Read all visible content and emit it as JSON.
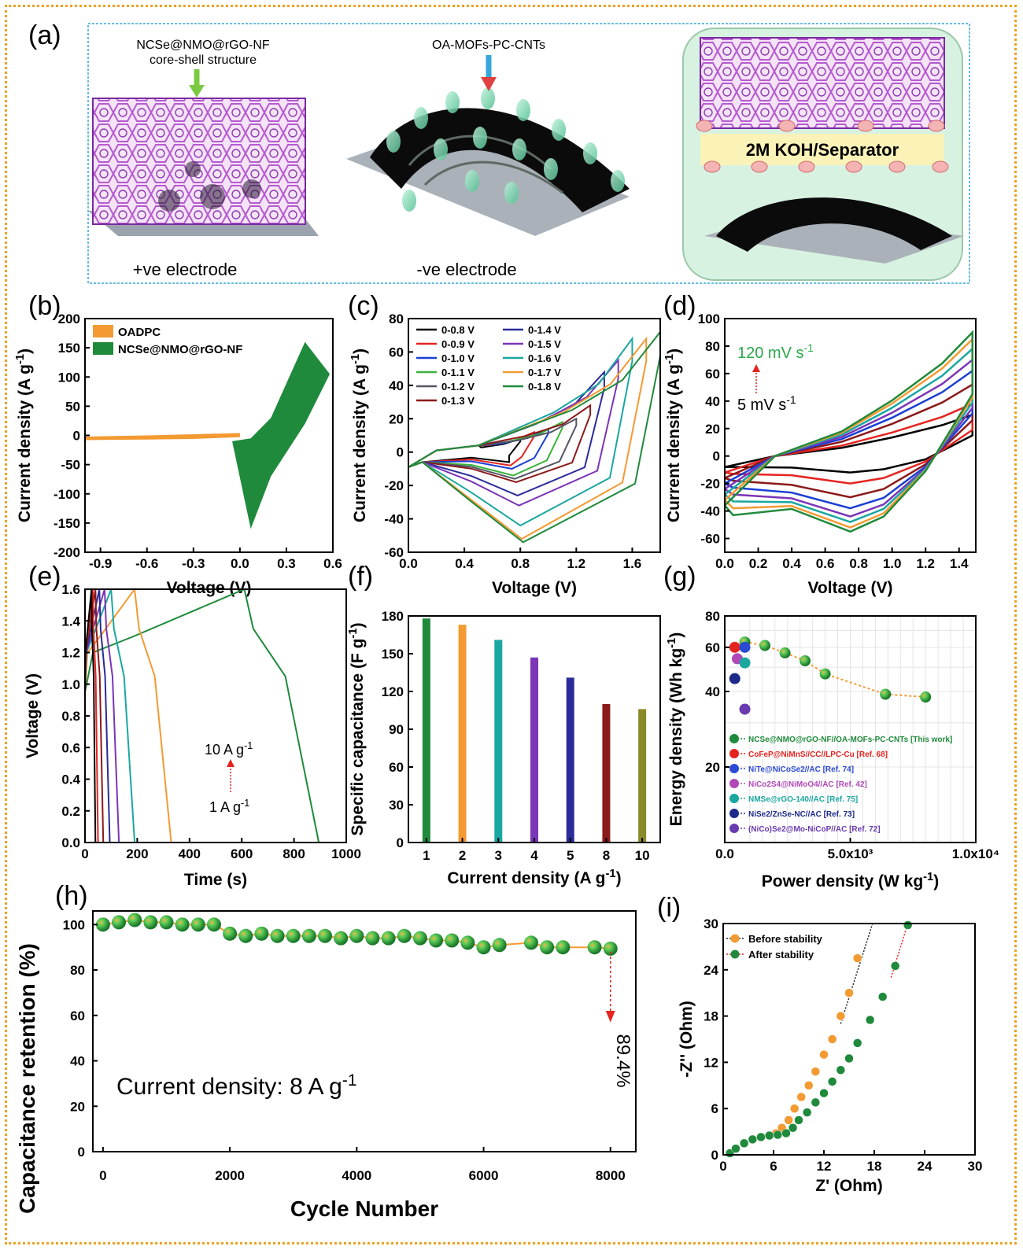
{
  "figure": {
    "panel_labels": [
      "(a)",
      "(b)",
      "(c)",
      "(d)",
      "(e)",
      "(f)",
      "(g)",
      "(h)",
      "(i)"
    ],
    "schematic": {
      "label_pos": "NCSe@NMO@rGO-NF",
      "label_pos_sub": "core-shell structure",
      "label_neg": "OA-MOFs-PC-CNTs",
      "electrolyte": "2M KOH/Separator",
      "pos_electrode": "+ve electrode",
      "neg_electrode": "-ve electrode"
    }
  },
  "chart_data": [
    {
      "panel": "b",
      "type": "line",
      "xlabel": "Voltage (V)",
      "ylabel": "Current density (A g-1)",
      "xlim": [
        -1.0,
        0.6
      ],
      "ylim": [
        -200,
        200
      ],
      "xticks": [
        "-0.9",
        "-0.6",
        "-0.3",
        "0.0",
        "0.3",
        "0.6"
      ],
      "yticks": [
        "-200",
        "-150",
        "-100",
        "-50",
        "0",
        "50",
        "100",
        "150",
        "200"
      ],
      "legend": [
        "OADPC",
        "NCSe@NMO@rGO-NF"
      ],
      "colors": [
        "#f39a32",
        "#1f8a3b"
      ],
      "series": [
        {
          "name": "OADPC",
          "x": [
            -1.0,
            -0.6,
            -0.3,
            0.0
          ],
          "y_upper": [
            -2,
            0,
            2,
            4
          ],
          "y_lower": [
            -8,
            -7,
            -6,
            -3
          ]
        },
        {
          "name": "NCSe@NMO@rGO-NF",
          "x": [
            -0.05,
            0.07,
            0.2,
            0.42,
            0.58
          ],
          "y_upper": [
            -10,
            -5,
            30,
            160,
            105
          ],
          "y_lower": [
            -10,
            -160,
            -70,
            20,
            105
          ]
        }
      ]
    },
    {
      "panel": "c",
      "type": "line",
      "xlabel": "Voltage (V)",
      "ylabel": "Current density (A g-1)",
      "xlim": [
        0.0,
        1.8
      ],
      "ylim": [
        -60,
        80
      ],
      "xticks": [
        "0.0",
        "0.4",
        "0.8",
        "1.2",
        "1.6"
      ],
      "yticks": [
        "-60",
        "-40",
        "-20",
        "0",
        "20",
        "40",
        "60",
        "80"
      ],
      "legend": [
        "0-0.8 V",
        "0-0.9 V",
        "0-1.0 V",
        "0-1.1 V",
        "0-1.2 V",
        "0-1.3 V",
        "0-1.4 V",
        "0-1.5 V",
        "0-1.6 V",
        "0-1.7 V",
        "0-1.8 V"
      ],
      "colors": [
        "#000000",
        "#e52420",
        "#1a3fd4",
        "#3ab33a",
        "#555566",
        "#8b1a1a",
        "#2b2b9a",
        "#7b35b8",
        "#1aa7a0",
        "#f39a32",
        "#1f8a3b"
      ],
      "vmax": [
        0.8,
        0.9,
        1.0,
        1.1,
        1.2,
        1.3,
        1.4,
        1.5,
        1.6,
        1.7,
        1.8
      ],
      "peak_current_top": [
        8,
        12,
        14,
        18,
        20,
        28,
        48,
        55,
        68,
        68,
        72
      ],
      "peak_current_bottom": [
        -6,
        -8,
        -10,
        -14,
        -16,
        -18,
        -26,
        -32,
        -44,
        -52,
        -54
      ]
    },
    {
      "panel": "d",
      "type": "line",
      "xlabel": "Voltage (V)",
      "ylabel": "Current density (A g-1)",
      "xlim": [
        0.0,
        1.5
      ],
      "ylim": [
        -70,
        100
      ],
      "xticks": [
        "0.0",
        "0.2",
        "0.4",
        "0.6",
        "0.8",
        "1.0",
        "1.2",
        "1.4"
      ],
      "yticks": [
        "-60",
        "-40",
        "-20",
        "0",
        "20",
        "40",
        "60",
        "80",
        "100"
      ],
      "annotations": [
        "120 mV s-1",
        "5 mV s-1"
      ],
      "colors": [
        "#000000",
        "#e52420",
        "#8b1a1a",
        "#1a3fd4",
        "#7b35b8",
        "#1aa7a0",
        "#f39a32",
        "#1f8a3b"
      ],
      "max_current": [
        30,
        38,
        52,
        62,
        70,
        78,
        85,
        90
      ],
      "min_current": [
        -12,
        -20,
        -30,
        -38,
        -44,
        -48,
        -52,
        -55
      ]
    },
    {
      "panel": "e",
      "type": "line",
      "xlabel": "Time (s)",
      "ylabel": "Voltage (V)",
      "xlim": [
        0,
        1000
      ],
      "ylim": [
        0.0,
        1.6
      ],
      "xticks": [
        "0",
        "200",
        "400",
        "600",
        "800",
        "1000"
      ],
      "yticks": [
        "0.0",
        "0.2",
        "0.4",
        "0.6",
        "0.8",
        "1.0",
        "1.2",
        "1.4",
        "1.6"
      ],
      "annotations": [
        "10 A g-1",
        "1 A g-1"
      ],
      "colors": [
        "#1f8a3b",
        "#f39a32",
        "#1aa7a0",
        "#7b35b8",
        "#2b2b9a",
        "#8b1a1a",
        "#e52420",
        "#000000"
      ],
      "charge_end": [
        610,
        190,
        100,
        75,
        55,
        40,
        30,
        25
      ],
      "discharge_end": [
        895,
        330,
        190,
        130,
        95,
        70,
        50,
        40
      ]
    },
    {
      "panel": "f",
      "type": "bar",
      "xlabel": "Current density (A g-1)",
      "ylabel": "Specific capacitance (F g-1)",
      "ylim": [
        0,
        180
      ],
      "yticks": [
        "0",
        "30",
        "60",
        "90",
        "120",
        "150",
        "180"
      ],
      "categories": [
        "1",
        "2",
        "3",
        "4",
        "5",
        "8",
        "10"
      ],
      "values": [
        178,
        173,
        161,
        147,
        131,
        110,
        106
      ],
      "colors": [
        "#1f8a3b",
        "#f39a32",
        "#1aa7a0",
        "#7b35b8",
        "#2b2b9a",
        "#8b1a1a",
        "#8a8a2a"
      ]
    },
    {
      "panel": "g",
      "type": "scatter",
      "xlabel": "Power density (W kg-1)",
      "ylabel": "Energy density (Wh kg-1)",
      "xlim": [
        0,
        10000
      ],
      "ylim_log": [
        10,
        80
      ],
      "xticks": [
        "0.0",
        "5.0x10³",
        "1.0x10⁴"
      ],
      "yticks": [
        "20",
        "40",
        "60",
        "80"
      ],
      "legend": [
        "NCSe@NMO@rGO-NF//OA-MOFs-PC-CNTs [This work]",
        "CoFeP@NiMnS//CC//LPC-Cu [Ref. 68]",
        "NiTe@NiCoSe2//AC [Ref. 74]",
        "NiCo2S4@NiMoO4//AC [Ref. 42]",
        "NMSe@rGO-140//AC [Ref. 75]",
        "NiSe2/ZnSe-NC//AC [Ref. 73]",
        "(NiCo)Se2@Mo-NiCoP//AC [Ref. 72]"
      ],
      "legend_colors": [
        "#1f8a3b",
        "#e52420",
        "#2b4bd4",
        "#b048b8",
        "#1aa7a0",
        "#1d2a8a",
        "#6a3bb0"
      ],
      "series": [
        {
          "name": "NCSe@NMO@rGO-NF//OA-MOFs-PC-CNTs [This work]",
          "x": [
            800,
            1600,
            2400,
            3200,
            4000,
            6400,
            8000
          ],
          "y": [
            63,
            61,
            57,
            53,
            47,
            39,
            38
          ]
        },
        {
          "name": "CoFeP@NiMnS//CC//LPC-Cu [Ref. 68]",
          "x": [
            400
          ],
          "y": [
            60
          ]
        },
        {
          "name": "NiTe@NiCoSe2//AC [Ref. 74]",
          "x": [
            800
          ],
          "y": [
            60
          ]
        },
        {
          "name": "NiCo2S4@NiMoO4//AC [Ref. 42]",
          "x": [
            500
          ],
          "y": [
            54
          ]
        },
        {
          "name": "NMSe@rGO-140//AC [Ref. 75]",
          "x": [
            800
          ],
          "y": [
            52
          ]
        },
        {
          "name": "NiSe2/ZnSe-NC//AC [Ref. 73]",
          "x": [
            400
          ],
          "y": [
            45
          ]
        },
        {
          "name": "(NiCo)Se2@Mo-NiCoP//AC [Ref. 72]",
          "x": [
            800
          ],
          "y": [
            34
          ]
        }
      ]
    },
    {
      "panel": "h",
      "type": "scatter",
      "xlabel": "Cycle Number",
      "ylabel": "Capacitance retention (%)",
      "xlim": [
        0,
        8000
      ],
      "ylim": [
        0,
        100
      ],
      "xticks": [
        "0",
        "2000",
        "4000",
        "6000",
        "8000"
      ],
      "yticks": [
        "0",
        "20",
        "40",
        "60",
        "80",
        "100"
      ],
      "annotations": [
        "Current density: 8 A g-1",
        "89.4%"
      ],
      "x": [
        0,
        250,
        500,
        750,
        1000,
        1250,
        1500,
        1750,
        2000,
        2250,
        2500,
        2750,
        3000,
        3250,
        3500,
        3750,
        4000,
        4250,
        4500,
        4750,
        5000,
        5250,
        5500,
        5750,
        6000,
        6250,
        6750,
        7000,
        7250,
        7750,
        8000
      ],
      "y": [
        100,
        101,
        102,
        101,
        101,
        100,
        100,
        100,
        96,
        95,
        96,
        95,
        95,
        95,
        95,
        94,
        95,
        94,
        94,
        95,
        94,
        93,
        93,
        92,
        90,
        91,
        92,
        90,
        90,
        90,
        89.4
      ]
    },
    {
      "panel": "i",
      "type": "scatter",
      "xlabel": "Z' (Ohm)",
      "ylabel": "-Z'' (Ohm)",
      "xlim": [
        0,
        30
      ],
      "ylim": [
        0,
        30
      ],
      "xticks": [
        "0",
        "6",
        "12",
        "18",
        "24",
        "30"
      ],
      "yticks": [
        "0",
        "6",
        "12",
        "18",
        "24",
        "30"
      ],
      "legend": [
        "Before stability",
        "After stability"
      ],
      "colors": [
        "#f39a32",
        "#1f8a3b"
      ],
      "series": [
        {
          "name": "Before stability",
          "x": [
            0.8,
            1.5,
            2.5,
            3.5,
            4.5,
            5.5,
            6.3,
            7,
            7.8,
            8.5,
            9.3,
            10.2,
            11,
            12,
            13,
            14,
            15,
            16
          ],
          "y": [
            0.2,
            0.8,
            1.5,
            2,
            2.3,
            2.5,
            2.8,
            3.5,
            4.5,
            6,
            7.5,
            9,
            10.8,
            13,
            15,
            18,
            21,
            25.5
          ]
        },
        {
          "name": "After stability",
          "x": [
            0.8,
            1.5,
            2.5,
            3.5,
            4.5,
            5.5,
            6.5,
            7.5,
            8.3,
            9,
            10,
            11,
            12,
            13,
            14,
            15,
            16,
            17.5,
            19,
            20.5,
            22
          ],
          "y": [
            0.2,
            0.8,
            1.5,
            2,
            2.3,
            2.5,
            2.6,
            2.8,
            3.5,
            4.5,
            5.5,
            6.8,
            8,
            9.5,
            11,
            12.5,
            14.5,
            17.5,
            20.5,
            24.5,
            29.8
          ]
        }
      ]
    }
  ]
}
